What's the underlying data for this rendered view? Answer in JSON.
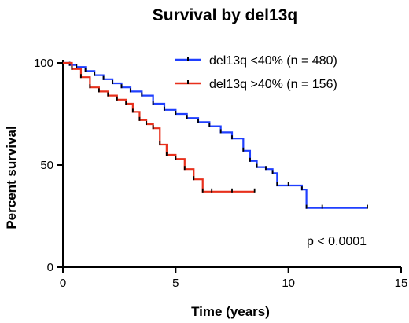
{
  "chart_data": {
    "type": "line",
    "title": "Survival by del13q",
    "xlabel": "Time (years)",
    "ylabel": "Percent survival",
    "xlim": [
      0,
      15
    ],
    "ylim": [
      0,
      100
    ],
    "xticks": [
      0,
      5,
      10,
      15
    ],
    "yticks": [
      0,
      50,
      100
    ],
    "grid": false,
    "legend_position": "top-right",
    "annotation": "p < 0.0001",
    "series": [
      {
        "name": "del13q <40% (n = 480)",
        "color": "#1f3fff",
        "step": true,
        "x": [
          0,
          0.3,
          0.6,
          1.0,
          1.4,
          1.8,
          2.2,
          2.6,
          3.0,
          3.5,
          4.0,
          4.5,
          5.0,
          5.5,
          6.0,
          6.5,
          7.0,
          7.5,
          8.0,
          8.3,
          8.6,
          9.0,
          9.3,
          9.5,
          10.0,
          10.6,
          10.8,
          11.5,
          13.5
        ],
        "y": [
          100,
          99,
          98,
          96,
          94,
          92,
          90,
          88,
          86,
          84,
          80,
          77,
          75,
          73,
          71,
          69,
          66,
          63,
          57,
          52,
          49,
          48,
          46,
          40,
          40,
          38,
          29,
          29,
          29
        ]
      },
      {
        "name": "del13q >40% (n = 156)",
        "color": "#e8301c",
        "step": true,
        "x": [
          0,
          0.4,
          0.8,
          1.2,
          1.6,
          2.0,
          2.4,
          2.8,
          3.1,
          3.4,
          3.7,
          4.0,
          4.3,
          4.6,
          5.0,
          5.4,
          5.8,
          6.2,
          6.6,
          7.5,
          8.5
        ],
        "y": [
          100,
          97,
          93,
          88,
          86,
          84,
          82,
          80,
          76,
          72,
          70,
          68,
          60,
          55,
          53,
          48,
          43,
          37,
          37,
          37,
          37
        ]
      }
    ]
  }
}
